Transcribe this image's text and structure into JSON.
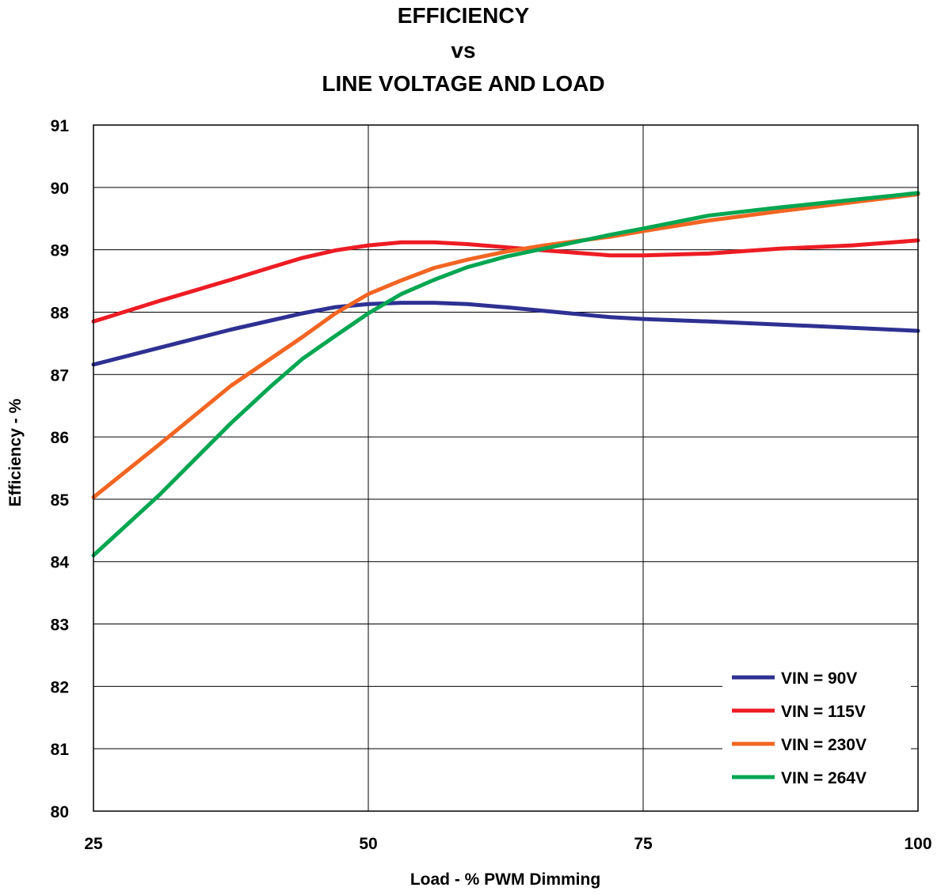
{
  "chart_data": {
    "type": "line",
    "title_lines": [
      "EFFICIENCY",
      "vs",
      "LINE VOLTAGE AND LOAD"
    ],
    "xlabel": "Load - % PWM Dimming",
    "ylabel": "Efficiency - %",
    "xlim": [
      25,
      100
    ],
    "ylim": [
      80,
      91
    ],
    "x_ticks": [
      25,
      50,
      75,
      100
    ],
    "y_ticks": [
      80,
      81,
      82,
      83,
      84,
      85,
      86,
      87,
      88,
      89,
      90,
      91
    ],
    "grid": true,
    "legend_position": "bottom-right",
    "series": [
      {
        "name": "VIN = 90V",
        "color": "#2e3192",
        "x": [
          25,
          31,
          37.5,
          44,
          47,
          50,
          53,
          56,
          59,
          63,
          66,
          72,
          75,
          81,
          87.5,
          94,
          100
        ],
        "y": [
          87.16,
          87.43,
          87.72,
          87.98,
          88.08,
          88.13,
          88.15,
          88.15,
          88.13,
          88.07,
          88.02,
          87.92,
          87.89,
          87.85,
          87.8,
          87.75,
          87.7
        ]
      },
      {
        "name": "VIN = 115V",
        "color": "#ed1c24",
        "x": [
          25,
          31,
          37.5,
          41,
          44,
          47,
          50,
          53,
          56,
          59,
          62.5,
          66,
          72,
          75,
          81,
          87.5,
          94,
          100
        ],
        "y": [
          87.85,
          88.18,
          88.52,
          88.71,
          88.87,
          88.99,
          89.07,
          89.12,
          89.12,
          89.09,
          89.04,
          88.99,
          88.91,
          88.91,
          88.94,
          89.02,
          89.07,
          89.15
        ]
      },
      {
        "name": "VIN = 230V",
        "color": "#f26522",
        "x": [
          25,
          31,
          37.5,
          44,
          47,
          50,
          53,
          56,
          59,
          62.5,
          66,
          69,
          72,
          75,
          81,
          87.5,
          94,
          100
        ],
        "y": [
          85.03,
          85.88,
          86.82,
          87.6,
          87.98,
          88.29,
          88.51,
          88.71,
          88.84,
          88.97,
          89.07,
          89.14,
          89.21,
          89.3,
          89.47,
          89.62,
          89.76,
          89.89
        ]
      },
      {
        "name": "VIN = 264V",
        "color": "#00a651",
        "x": [
          25,
          31,
          37.5,
          41,
          44,
          47,
          50,
          53,
          56,
          59,
          62.5,
          66,
          69,
          72,
          75,
          81,
          87.5,
          94,
          100
        ],
        "y": [
          84.1,
          85.07,
          86.22,
          86.79,
          87.25,
          87.62,
          87.98,
          88.29,
          88.52,
          88.72,
          88.89,
          89.02,
          89.13,
          89.24,
          89.34,
          89.55,
          89.68,
          89.8,
          89.91
        ]
      }
    ]
  }
}
